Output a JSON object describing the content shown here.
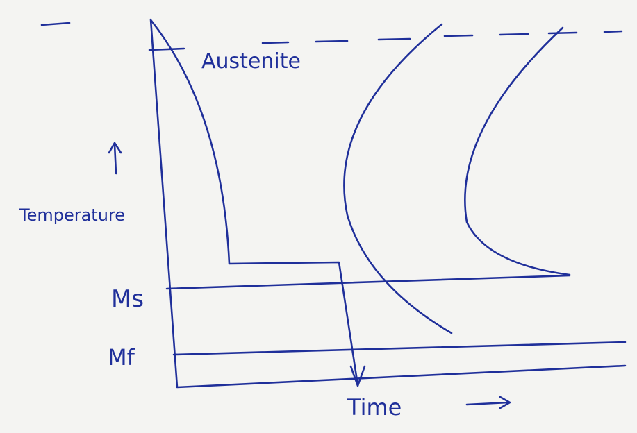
{
  "labels": {
    "austenite": "Austenite",
    "temperature": "Temperature",
    "ms": "Ms",
    "mf": "Mf",
    "time": "Time"
  }
}
